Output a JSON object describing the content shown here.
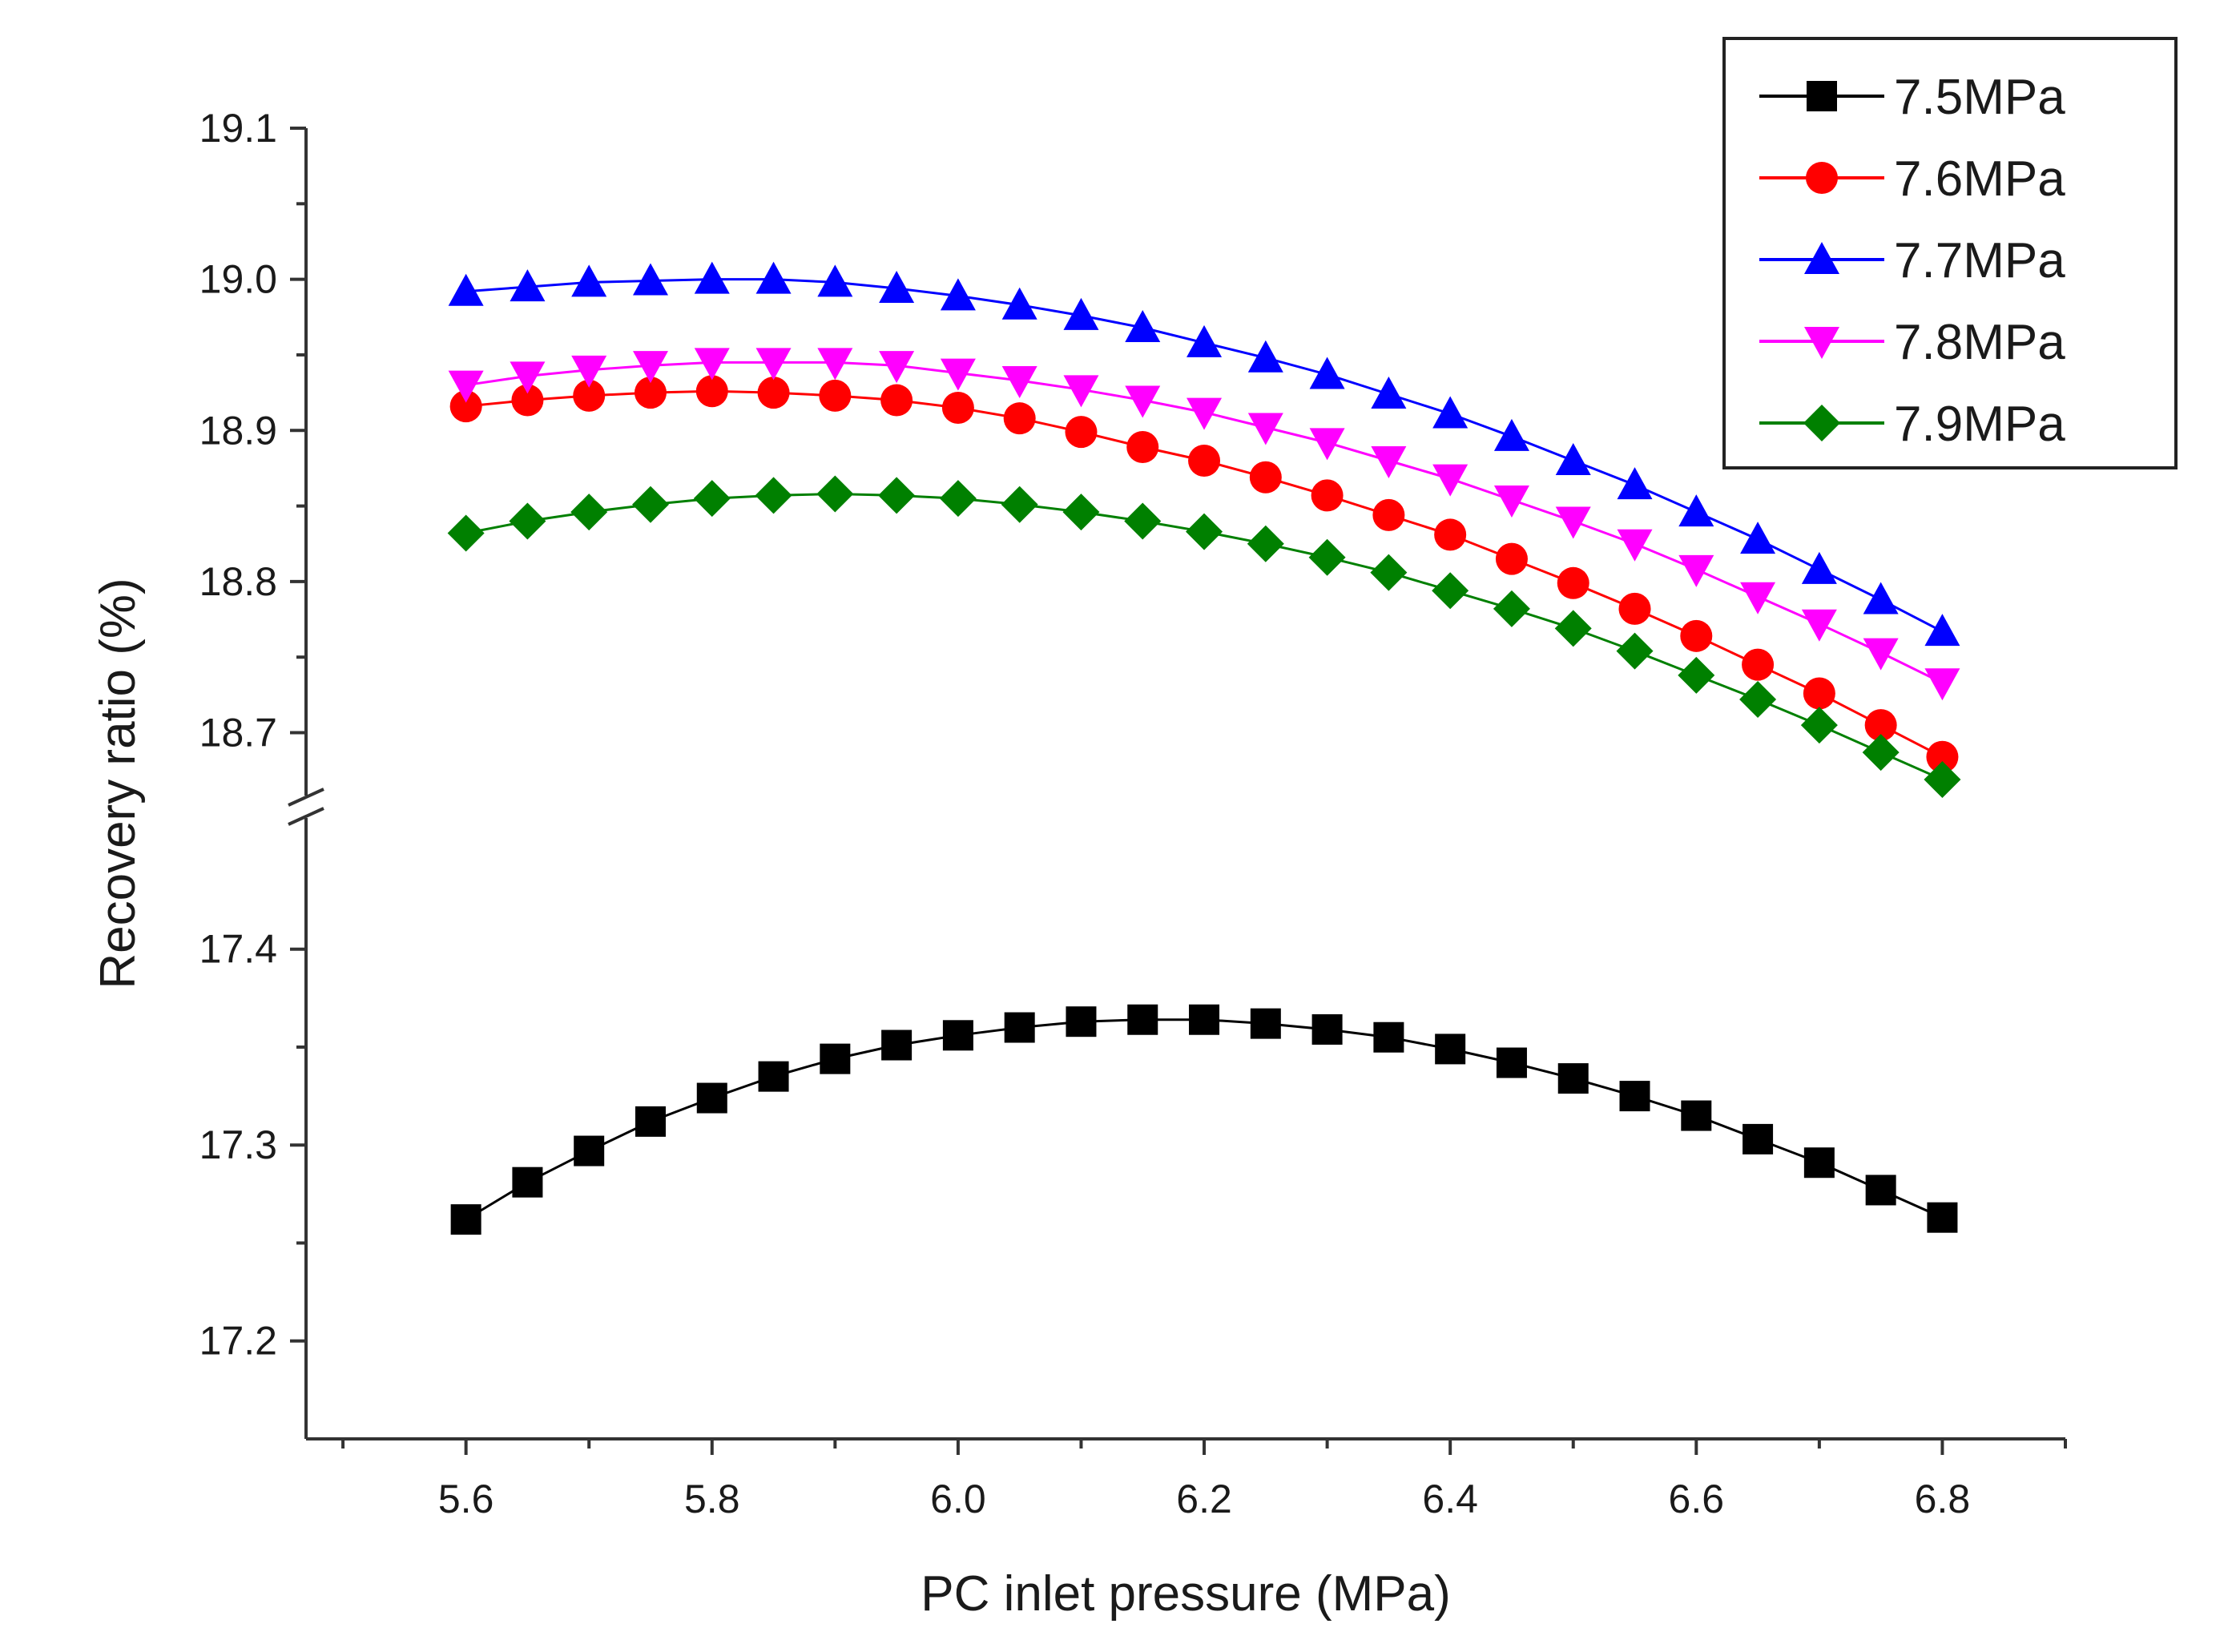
{
  "chart_data": {
    "type": "line",
    "title": "",
    "xlabel": "PC inlet pressure (MPa)",
    "ylabel": "Recovery ratio  (%)",
    "xlim": [
      5.47,
      6.9
    ],
    "x_ticks": [
      "5.6",
      "5.8",
      "6.0",
      "6.2",
      "6.4",
      "6.6",
      "6.8"
    ],
    "y_axis_break": {
      "upper_range": [
        18.66,
        19.1
      ],
      "lower_range": [
        17.15,
        17.46
      ],
      "upper_ticks": [
        "18.7",
        "18.8",
        "18.9",
        "19.0",
        "19.1"
      ],
      "lower_ticks": [
        "17.2",
        "17.3",
        "17.4"
      ]
    },
    "legend_position": "top-right",
    "x": [
      5.6,
      5.65,
      5.7,
      5.75,
      5.8,
      5.85,
      5.9,
      5.95,
      6.0,
      6.05,
      6.1,
      6.15,
      6.2,
      6.25,
      6.3,
      6.35,
      6.4,
      6.45,
      6.5,
      6.55,
      6.6,
      6.65,
      6.7,
      6.75,
      6.8
    ],
    "series": [
      {
        "name": "7.5MPa",
        "color": "#000000",
        "marker": "square",
        "values": [
          17.262,
          17.281,
          17.297,
          17.312,
          17.324,
          17.335,
          17.344,
          17.351,
          17.356,
          17.36,
          17.363,
          17.364,
          17.364,
          17.362,
          17.359,
          17.355,
          17.349,
          17.342,
          17.334,
          17.325,
          17.315,
          17.303,
          17.291,
          17.277,
          17.263
        ]
      },
      {
        "name": "7.6MPa",
        "color": "#ff0000",
        "marker": "circle",
        "values": [
          18.916,
          18.92,
          18.923,
          18.925,
          18.926,
          18.925,
          18.923,
          18.92,
          18.915,
          18.908,
          18.899,
          18.889,
          18.88,
          18.869,
          18.857,
          18.844,
          18.831,
          18.815,
          18.799,
          18.782,
          18.764,
          18.745,
          18.726,
          18.705,
          18.684
        ]
      },
      {
        "name": "7.7MPa",
        "color": "#0000ff",
        "marker": "triangle-up",
        "values": [
          18.992,
          18.995,
          18.998,
          18.999,
          19.0,
          19.0,
          18.998,
          18.994,
          18.989,
          18.983,
          18.976,
          18.968,
          18.958,
          18.948,
          18.937,
          18.924,
          18.911,
          18.896,
          18.88,
          18.864,
          18.846,
          18.828,
          18.808,
          18.788,
          18.767
        ]
      },
      {
        "name": "7.8MPa",
        "color": "#ff00ff",
        "marker": "triangle-down",
        "values": [
          18.93,
          18.936,
          18.94,
          18.943,
          18.945,
          18.945,
          18.945,
          18.943,
          18.938,
          18.933,
          18.927,
          18.92,
          18.912,
          18.902,
          18.892,
          18.88,
          18.868,
          18.854,
          18.84,
          18.825,
          18.808,
          18.79,
          18.772,
          18.753,
          18.733
        ]
      },
      {
        "name": "7.9MPa",
        "color": "#008000",
        "marker": "diamond",
        "values": [
          18.832,
          18.84,
          18.846,
          18.851,
          18.855,
          18.857,
          18.858,
          18.857,
          18.855,
          18.851,
          18.846,
          18.84,
          18.833,
          18.825,
          18.816,
          18.806,
          18.794,
          18.782,
          18.769,
          18.754,
          18.738,
          18.722,
          18.705,
          18.687,
          18.669
        ]
      }
    ]
  }
}
